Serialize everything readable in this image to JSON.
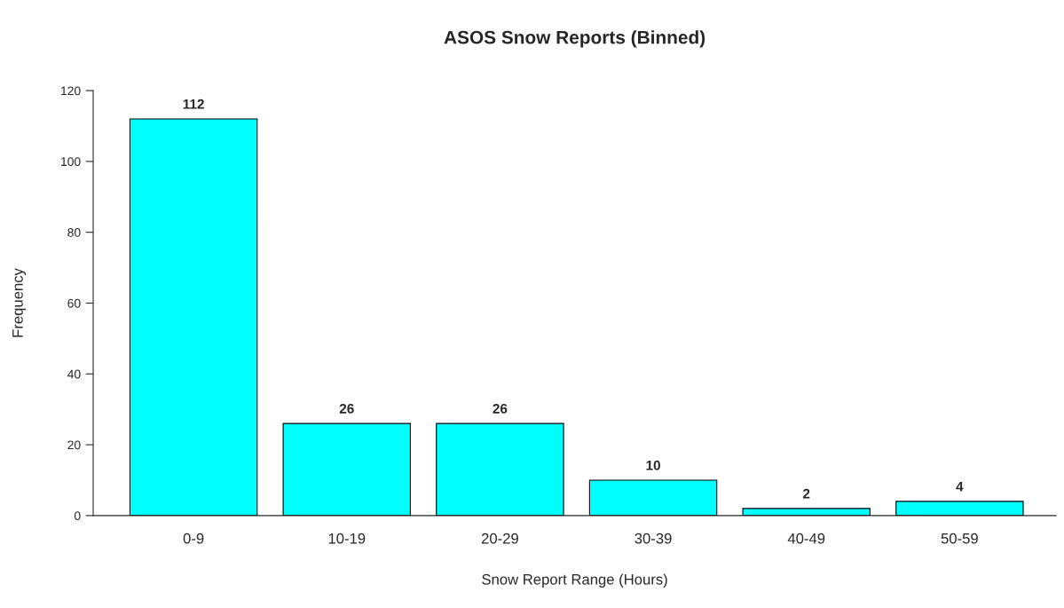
{
  "chart_data": {
    "type": "bar",
    "title": "ASOS Snow Reports (Binned)",
    "xlabel": "Snow Report Range (Hours)",
    "ylabel": "Frequency",
    "categories": [
      "0-9",
      "10-19",
      "20-29",
      "30-39",
      "40-49",
      "50-59"
    ],
    "values": [
      112,
      26,
      26,
      10,
      2,
      4
    ],
    "color": "#00ffff",
    "ylim": [
      0,
      120
    ],
    "yticks": [
      0,
      20,
      40,
      60,
      80,
      100,
      120
    ],
    "grid": false,
    "data_labels": true
  }
}
